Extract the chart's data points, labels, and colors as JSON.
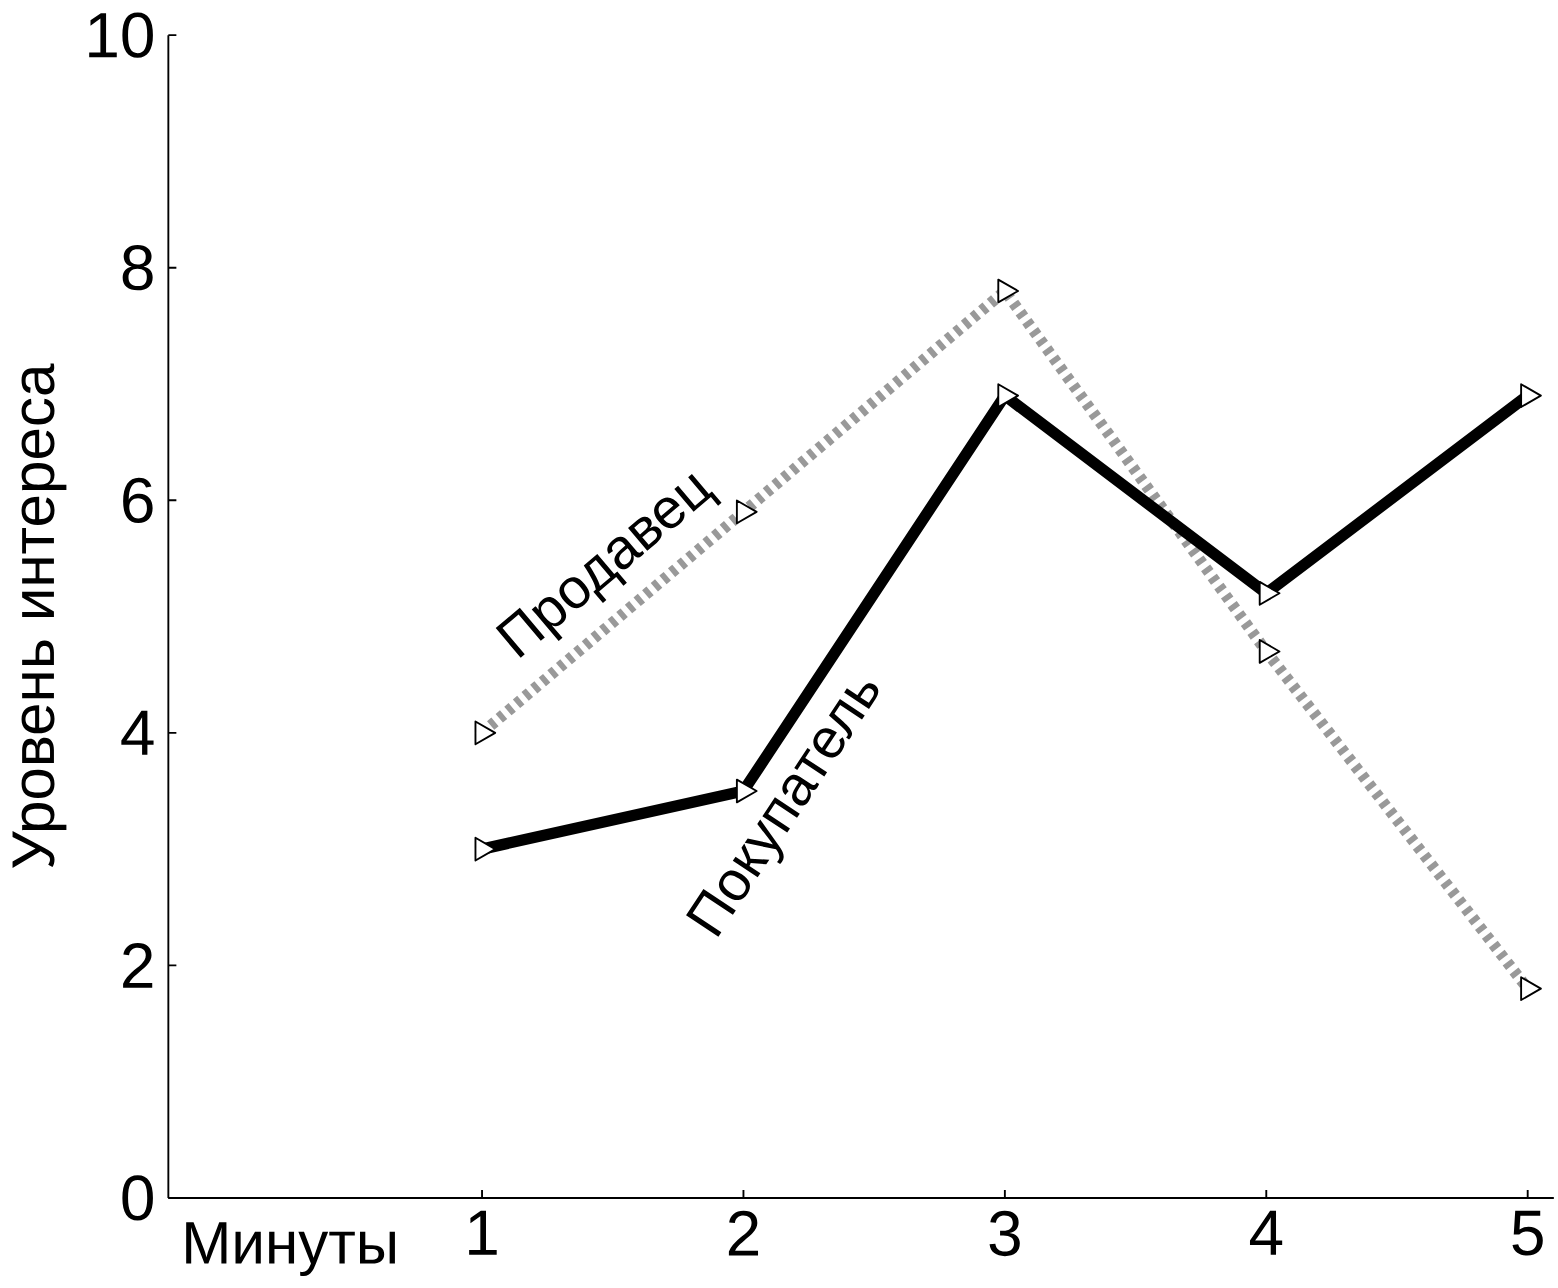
{
  "chart_data": {
    "type": "line",
    "xlabel": "Минуты",
    "ylabel": "Уровень интереса",
    "categories": [
      "1",
      "2",
      "3",
      "4",
      "5"
    ],
    "ylim": [
      0,
      10
    ],
    "yticks": [
      0,
      2,
      4,
      6,
      8,
      10
    ],
    "grid": false,
    "marker": "triangle",
    "series": [
      {
        "name": "Продавец",
        "color": "#999999",
        "line_style": "dashed",
        "values": [
          4,
          5.9,
          7.8,
          4.7,
          1.8
        ]
      },
      {
        "name": "Покупатель",
        "color": "#000000",
        "line_style": "solid",
        "values": [
          3,
          3.5,
          6.9,
          5.2,
          6.9
        ]
      }
    ]
  }
}
